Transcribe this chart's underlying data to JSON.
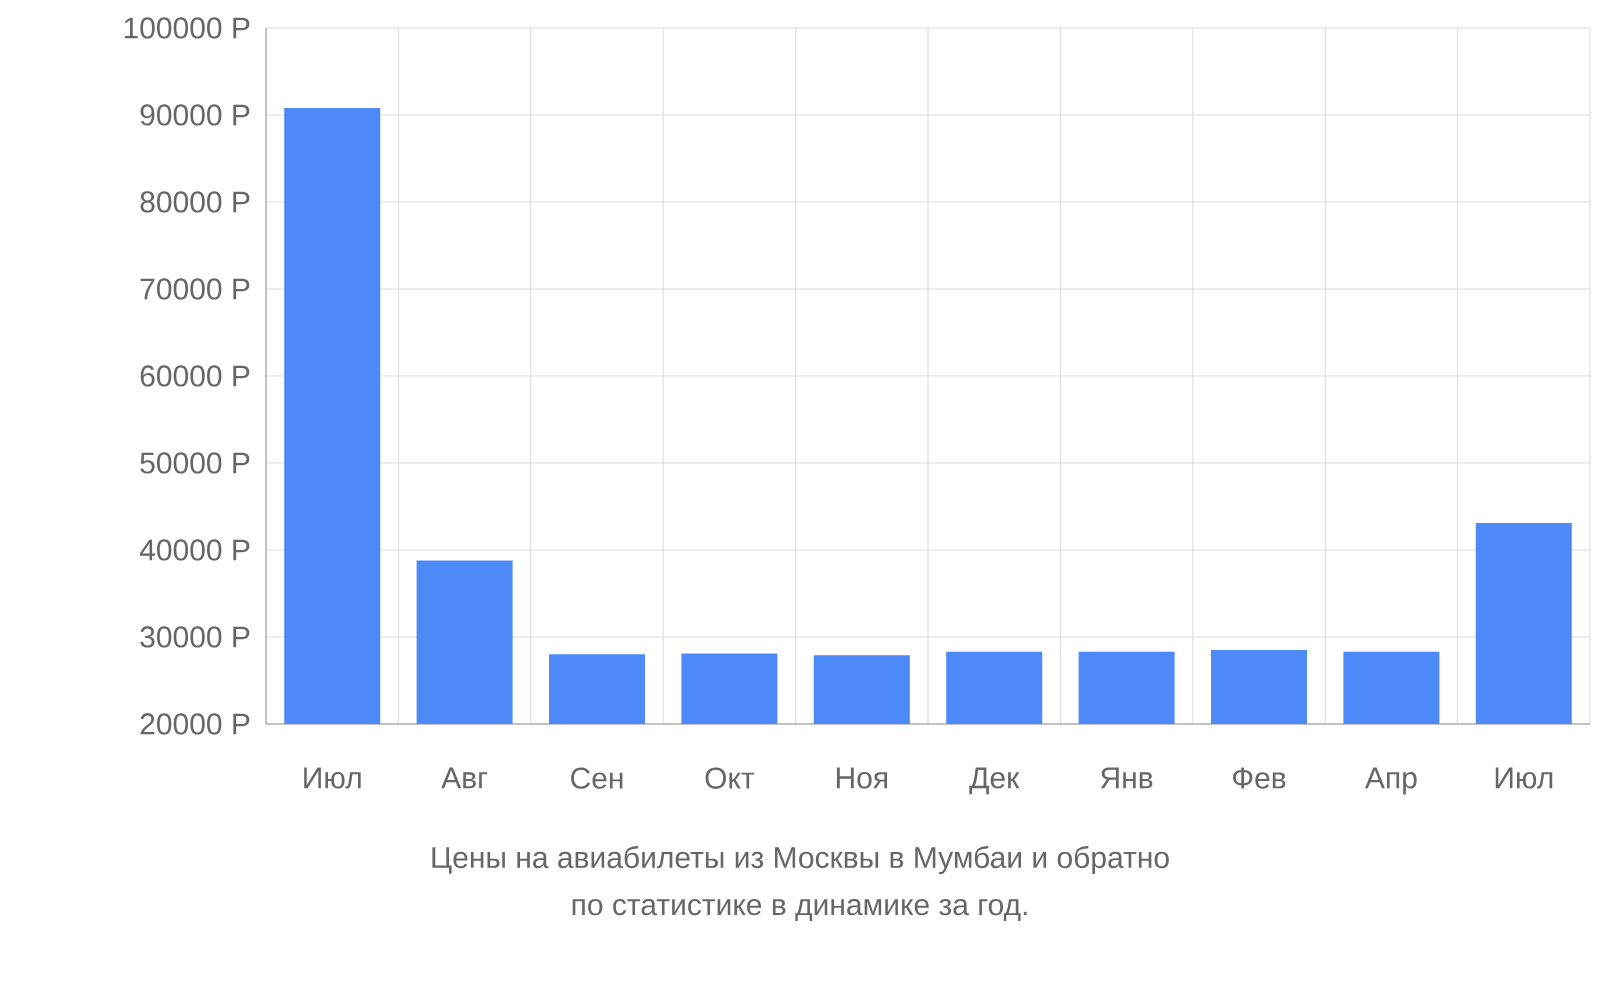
{
  "chart_data": {
    "type": "bar",
    "categories": [
      "Июл",
      "Авг",
      "Сен",
      "Окт",
      "Ноя",
      "Дек",
      "Янв",
      "Фев",
      "Апр",
      "Июл"
    ],
    "values": [
      90800,
      38800,
      28000,
      28100,
      27900,
      28300,
      28300,
      28500,
      28300,
      43100
    ],
    "color": "#4e89f8",
    "ylim": [
      20000,
      100000
    ],
    "yticks": [
      {
        "value": 20000,
        "label": "20000 Р"
      },
      {
        "value": 30000,
        "label": "30000 Р"
      },
      {
        "value": 40000,
        "label": "40000 Р"
      },
      {
        "value": 50000,
        "label": "50000 Р"
      },
      {
        "value": 60000,
        "label": "60000 Р"
      },
      {
        "value": 70000,
        "label": "70000 Р"
      },
      {
        "value": 80000,
        "label": "80000 Р"
      },
      {
        "value": 90000,
        "label": "90000 Р"
      },
      {
        "value": 100000,
        "label": "100000 Р"
      }
    ],
    "grid": true,
    "annotations": [
      "Цены на авиабилеты из Москвы в Мумбаи и обратно",
      "по статистике в динамике за год."
    ]
  }
}
